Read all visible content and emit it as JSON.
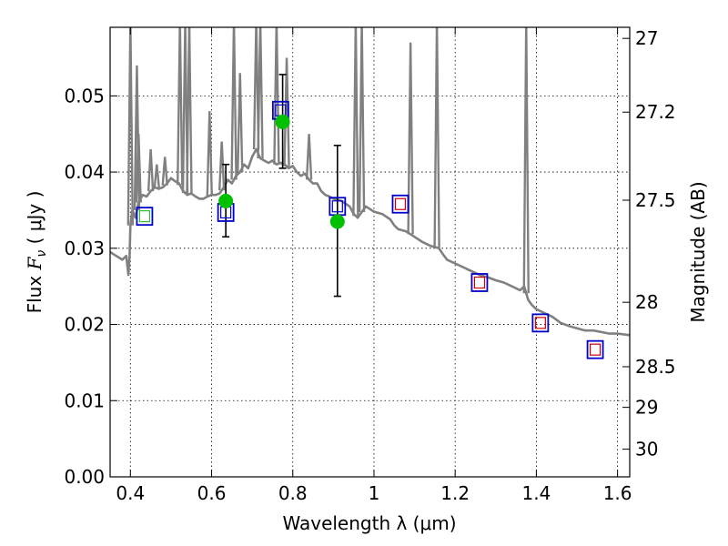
{
  "chart_data": {
    "type": "scatter",
    "xlabel": "Wavelength  λ (μm)",
    "ylabel_prefix": "Flux  ",
    "ylabel_symbol": "F",
    "ylabel_sub": "ν",
    "ylabel_suffix": "  ( μJy )",
    "ylabel_right": "Magnitude (AB)",
    "xlim": [
      0.35,
      1.63
    ],
    "ylim": [
      0.0,
      0.059
    ],
    "x_ticks": [
      0.4,
      0.6,
      0.8,
      1.0,
      1.2,
      1.4,
      1.6
    ],
    "x_tick_labels": [
      "0.4",
      "0.6",
      "0.8",
      "1",
      "1.2",
      "1.4",
      "1.6"
    ],
    "y_ticks": [
      0.0,
      0.01,
      0.02,
      0.03,
      0.04,
      0.05
    ],
    "y_tick_labels": [
      "0.00",
      "0.01",
      "0.02",
      "0.03",
      "0.04",
      "0.05"
    ],
    "mag_ticks": [
      27,
      27.2,
      27.5,
      28,
      28.5,
      29,
      30
    ],
    "mag_tick_labels": [
      "27",
      "27.2",
      "27.5",
      "28",
      "28.5",
      "29",
      "30"
    ],
    "grid": true,
    "colors": {
      "model": "#808080",
      "observed": "#00c000",
      "errorbar": "#000000",
      "model_box": "#0000cc",
      "optical_inner": "#2fbf2f",
      "nir_inner": "#cc0000"
    },
    "model_spectrum": [
      [
        0.35,
        0.0295
      ],
      [
        0.365,
        0.029
      ],
      [
        0.38,
        0.0285
      ],
      [
        0.39,
        0.029
      ],
      [
        0.395,
        0.0265
      ],
      [
        0.398,
        0.029
      ],
      [
        0.4,
        0.033
      ],
      [
        0.405,
        0.035
      ],
      [
        0.412,
        0.034
      ],
      [
        0.42,
        0.036
      ],
      [
        0.43,
        0.037
      ],
      [
        0.44,
        0.0368
      ],
      [
        0.45,
        0.0375
      ],
      [
        0.46,
        0.038
      ],
      [
        0.47,
        0.0378
      ],
      [
        0.48,
        0.038
      ],
      [
        0.49,
        0.0385
      ],
      [
        0.5,
        0.0392
      ],
      [
        0.51,
        0.0388
      ],
      [
        0.52,
        0.0385
      ],
      [
        0.53,
        0.0375
      ],
      [
        0.54,
        0.037
      ],
      [
        0.55,
        0.0372
      ],
      [
        0.56,
        0.0368
      ],
      [
        0.57,
        0.0365
      ],
      [
        0.58,
        0.0365
      ],
      [
        0.59,
        0.0368
      ],
      [
        0.6,
        0.037
      ],
      [
        0.61,
        0.037
      ],
      [
        0.62,
        0.0372
      ],
      [
        0.63,
        0.038
      ],
      [
        0.64,
        0.039
      ],
      [
        0.65,
        0.0385
      ],
      [
        0.66,
        0.0395
      ],
      [
        0.67,
        0.04
      ],
      [
        0.68,
        0.041
      ],
      [
        0.69,
        0.0405
      ],
      [
        0.7,
        0.042
      ],
      [
        0.71,
        0.043
      ],
      [
        0.72,
        0.0418
      ],
      [
        0.73,
        0.0415
      ],
      [
        0.74,
        0.0412
      ],
      [
        0.75,
        0.0415
      ],
      [
        0.76,
        0.041
      ],
      [
        0.77,
        0.0412
      ],
      [
        0.78,
        0.041
      ],
      [
        0.79,
        0.0405
      ],
      [
        0.8,
        0.0408
      ],
      [
        0.81,
        0.04
      ],
      [
        0.82,
        0.0395
      ],
      [
        0.83,
        0.0398
      ],
      [
        0.84,
        0.039
      ],
      [
        0.85,
        0.0385
      ],
      [
        0.86,
        0.0385
      ],
      [
        0.87,
        0.0375
      ],
      [
        0.88,
        0.037
      ],
      [
        0.89,
        0.0368
      ],
      [
        0.9,
        0.0365
      ],
      [
        0.92,
        0.0362
      ],
      [
        0.94,
        0.0355
      ],
      [
        0.95,
        0.0345
      ],
      [
        0.96,
        0.034
      ],
      [
        0.98,
        0.0355
      ],
      [
        1.0,
        0.0348
      ],
      [
        1.02,
        0.0345
      ],
      [
        1.04,
        0.0338
      ],
      [
        1.05,
        0.033
      ],
      [
        1.06,
        0.0325
      ],
      [
        1.08,
        0.0322
      ],
      [
        1.1,
        0.0315
      ],
      [
        1.12,
        0.0308
      ],
      [
        1.14,
        0.0303
      ],
      [
        1.16,
        0.03
      ],
      [
        1.17,
        0.0292
      ],
      [
        1.18,
        0.0285
      ],
      [
        1.2,
        0.028
      ],
      [
        1.22,
        0.0275
      ],
      [
        1.24,
        0.027
      ],
      [
        1.26,
        0.0265
      ],
      [
        1.28,
        0.0262
      ],
      [
        1.3,
        0.0258
      ],
      [
        1.32,
        0.0255
      ],
      [
        1.34,
        0.025
      ],
      [
        1.36,
        0.0245
      ],
      [
        1.37,
        0.025
      ],
      [
        1.38,
        0.0232
      ],
      [
        1.39,
        0.0225
      ],
      [
        1.4,
        0.022
      ],
      [
        1.42,
        0.0215
      ],
      [
        1.44,
        0.021
      ],
      [
        1.46,
        0.0202
      ],
      [
        1.48,
        0.0198
      ],
      [
        1.5,
        0.0195
      ],
      [
        1.52,
        0.0192
      ],
      [
        1.54,
        0.0192
      ],
      [
        1.56,
        0.019
      ],
      [
        1.58,
        0.0188
      ],
      [
        1.6,
        0.0188
      ],
      [
        1.63,
        0.0186
      ]
    ],
    "emission_lines": [
      [
        0.4,
        0.06
      ],
      [
        0.416,
        0.054
      ],
      [
        0.42,
        0.045
      ],
      [
        0.45,
        0.043
      ],
      [
        0.465,
        0.041
      ],
      [
        0.485,
        0.042
      ],
      [
        0.522,
        0.06
      ],
      [
        0.535,
        0.06
      ],
      [
        0.545,
        0.06
      ],
      [
        0.595,
        0.048
      ],
      [
        0.625,
        0.044
      ],
      [
        0.655,
        0.06
      ],
      [
        0.67,
        0.053
      ],
      [
        0.71,
        0.06
      ],
      [
        0.72,
        0.06
      ],
      [
        0.76,
        0.06
      ],
      [
        0.785,
        0.055
      ],
      [
        0.84,
        0.045
      ],
      [
        0.955,
        0.06
      ],
      [
        0.97,
        0.06
      ],
      [
        1.09,
        0.057
      ],
      [
        1.155,
        0.06
      ],
      [
        1.375,
        0.06
      ]
    ],
    "observed": [
      {
        "x": 0.635,
        "y": 0.0362,
        "yerr_low": 0.0315,
        "yerr_high": 0.041
      },
      {
        "x": 0.775,
        "y": 0.0466,
        "yerr_low": 0.0405,
        "yerr_high": 0.0528
      },
      {
        "x": 0.91,
        "y": 0.0335,
        "yerr_low": 0.0237,
        "yerr_high": 0.0435
      }
    ],
    "model_photometry_optical": [
      {
        "x": 0.435,
        "y": 0.0342
      },
      {
        "x": 0.635,
        "y": 0.0347
      },
      {
        "x": 0.77,
        "y": 0.0481
      },
      {
        "x": 0.91,
        "y": 0.0355
      }
    ],
    "model_photometry_nir": [
      {
        "x": 1.065,
        "y": 0.0358
      },
      {
        "x": 1.26,
        "y": 0.0255
      },
      {
        "x": 1.41,
        "y": 0.0202
      },
      {
        "x": 1.545,
        "y": 0.0167
      }
    ]
  }
}
